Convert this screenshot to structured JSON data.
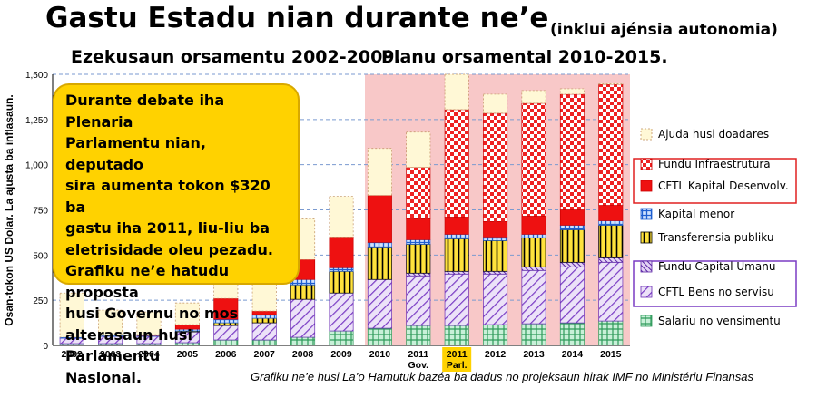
{
  "title": "Gastu Estadu nian durante ne’e",
  "title_note": "(inklui ajénsia autonomia)",
  "subtitle_executed": "Ezekusaun orsamentu 2002-2009.",
  "subtitle_planned": "Planu orsamental 2010-2015.",
  "callout_lines": [
    "Durante debate iha Plenaria",
    "Parlamentu nian, deputado",
    "sira aumenta tokon $320 ba",
    "gastu iha 2011, liu-liu ba",
    "eletrisidade oleu pezadu.",
    "Grafiku ne’e hatudu proposta",
    "husi Governu no mos",
    "alterasaun husi Parlamentu",
    "Nasional."
  ],
  "source": "Grafiku ne’e husi La’o Hamutuk bazéa ba dadus no projeksaun hirak IMF no Ministériu Finansas",
  "colors": {
    "callout_bg": "#ffd200",
    "planned_region": "#f8c8c8",
    "highlight_label": "#ffd200"
  },
  "chart_data": {
    "type": "bar",
    "stacked": true,
    "ylabel": "Osan-tokon US Dolar. La ajusta ba inflasaun.",
    "ylim": [
      0,
      1500
    ],
    "yticks": [
      0,
      250,
      500,
      750,
      1000,
      1250,
      1500
    ],
    "ytick_labels": [
      "0",
      "250",
      "500",
      "750",
      "1,000",
      "1,250",
      "1,500"
    ],
    "categories": [
      "2002",
      "2003",
      "2004",
      "2005",
      "2006",
      "2007",
      "2008",
      "2009",
      "2010",
      "2011 Gov.",
      "2011 Parl.",
      "2012",
      "2013",
      "2014",
      "2015"
    ],
    "category_labels": [
      [
        "2002"
      ],
      [
        "2003"
      ],
      [
        "2004"
      ],
      [
        "2005"
      ],
      [
        "2006"
      ],
      [
        "2007"
      ],
      [
        "2008"
      ],
      [
        "2009"
      ],
      [
        "2010"
      ],
      [
        "2011",
        "Gov."
      ],
      [
        "2011",
        "Parl."
      ],
      [
        "2012"
      ],
      [
        "2013"
      ],
      [
        "2014"
      ],
      [
        "2015"
      ]
    ],
    "highlight_category": "2011 Parl.",
    "planned_from_category": "2010",
    "series": [
      {
        "name": "Salariu no vensimentu",
        "pattern": "green-grid",
        "values": [
          10,
          10,
          10,
          15,
          30,
          30,
          45,
          80,
          95,
          110,
          110,
          115,
          120,
          125,
          135
        ]
      },
      {
        "name": "CFTL Bens no servisu",
        "pattern": "purple-hatch",
        "values": [
          30,
          40,
          40,
          60,
          80,
          95,
          210,
          210,
          270,
          275,
          285,
          280,
          295,
          310,
          325
        ]
      },
      {
        "name": "Fundu Capital Umanu",
        "pattern": "purple-hatch-dense",
        "values": [
          0,
          0,
          0,
          0,
          0,
          0,
          0,
          0,
          0,
          15,
          15,
          15,
          20,
          25,
          25
        ]
      },
      {
        "name": "Transferensia publiku",
        "pattern": "yellow-stripes",
        "values": [
          0,
          0,
          0,
          5,
          15,
          25,
          80,
          120,
          180,
          160,
          180,
          170,
          160,
          180,
          180
        ]
      },
      {
        "name": "Kapital menor",
        "pattern": "blue-grid",
        "values": [
          5,
          5,
          5,
          10,
          20,
          20,
          30,
          20,
          25,
          25,
          25,
          20,
          20,
          25,
          25
        ]
      },
      {
        "name": "CFTL Kapital Desenvolv.",
        "pattern": "red-solid",
        "values": [
          0,
          0,
          5,
          25,
          115,
          20,
          110,
          170,
          260,
          115,
          95,
          85,
          100,
          85,
          85
        ]
      },
      {
        "name": "Fundu Infraestrutura",
        "pattern": "red-checker",
        "values": [
          0,
          0,
          0,
          0,
          0,
          0,
          0,
          0,
          0,
          285,
          595,
          600,
          625,
          640,
          670
        ]
      },
      {
        "name": "Ajuda husi doadares",
        "pattern": "cream-dotted",
        "values": [
          245,
          140,
          125,
          120,
          165,
          200,
          225,
          225,
          260,
          195,
          195,
          105,
          70,
          30,
          5
        ]
      }
    ],
    "legend": [
      {
        "name": "Ajuda husi doadares",
        "group": null
      },
      {
        "name": "Fundu Infraestrutura",
        "group": "red"
      },
      {
        "name": "CFTL Kapital Desenvolv.",
        "group": "red"
      },
      {
        "name": "Kapital menor",
        "group": null
      },
      {
        "name": "Transferensia publiku",
        "group": null
      },
      {
        "name": "Fundu Capital Umanu",
        "group": "purple"
      },
      {
        "name": "CFTL Bens no servisu",
        "group": "purple"
      },
      {
        "name": "Salariu no vensimentu",
        "group": null
      }
    ],
    "legend_position": "right"
  }
}
